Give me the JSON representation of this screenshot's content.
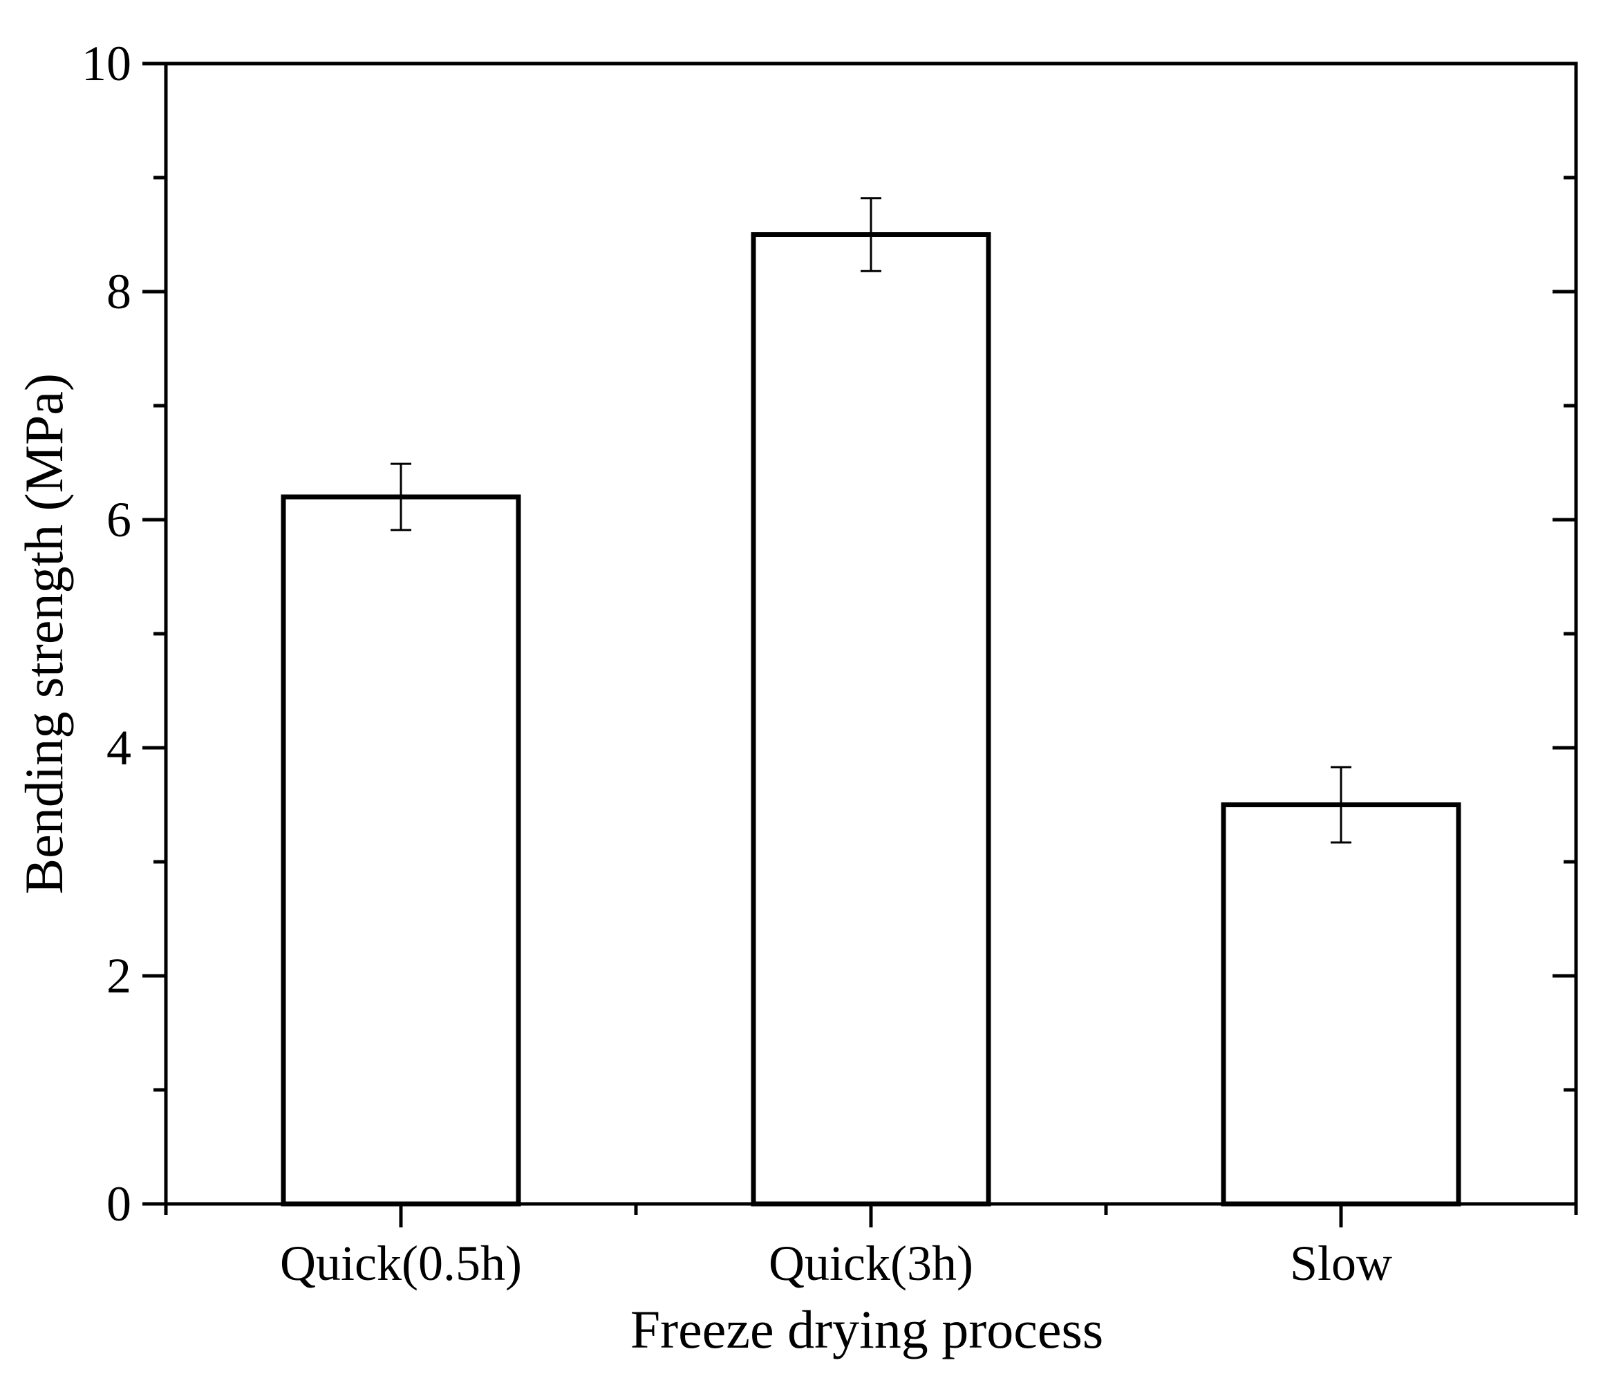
{
  "chart_data": {
    "type": "bar",
    "title": "",
    "xlabel": "Freeze drying process",
    "ylabel": "Bending strength (MPa)",
    "categories": [
      "Quick(0.5h)",
      "Quick(3h)",
      "Slow"
    ],
    "values": [
      6.2,
      8.5,
      3.5
    ],
    "errors": [
      0.29,
      0.32,
      0.33
    ],
    "ylim": [
      0,
      10
    ],
    "yticks": [
      0,
      2,
      4,
      6,
      8,
      10
    ],
    "ytick_labels": [
      "0",
      "2",
      "4",
      "6",
      "8",
      "10"
    ],
    "y_minor_step": 1,
    "grid": false,
    "bar_fill": "#ffffff",
    "bar_edge": "#000000"
  }
}
